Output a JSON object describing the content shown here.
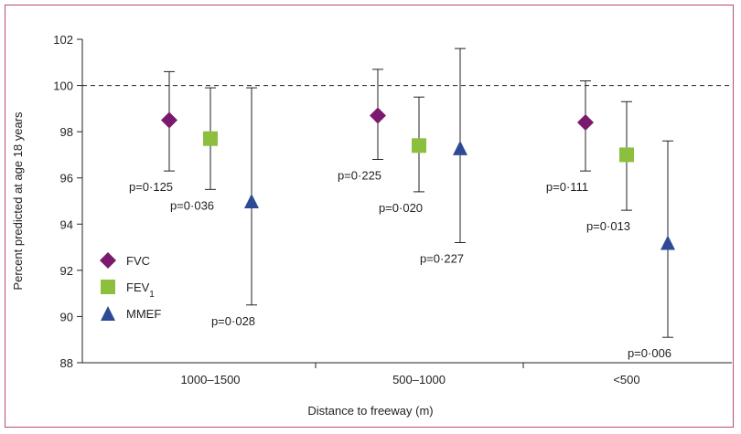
{
  "chart_data": {
    "type": "scatter",
    "ylabel": "Percent predicted at age 18 years",
    "xlabel": "Distance to freeway (m)",
    "categories": [
      "1000–1500",
      "500–1000",
      "<500"
    ],
    "ylim": [
      88,
      102
    ],
    "yticks": [
      "88",
      "90",
      "92",
      "94",
      "96",
      "98",
      "100",
      "102"
    ],
    "reference_line": 100,
    "legend_position": "left",
    "series": [
      {
        "name": "FVC",
        "sub": "",
        "color": "#7a1a6e",
        "marker": "diamond",
        "points": [
          {
            "value": 98.5,
            "low": 96.3,
            "high": 100.6,
            "p": "p=0·125"
          },
          {
            "value": 98.7,
            "low": 96.8,
            "high": 100.7,
            "p": "p=0·225"
          },
          {
            "value": 98.4,
            "low": 96.3,
            "high": 100.2,
            "p": "p=0·111"
          }
        ]
      },
      {
        "name": "FEV",
        "sub": "1",
        "color": "#8dbf3f",
        "marker": "square",
        "points": [
          {
            "value": 97.7,
            "low": 95.5,
            "high": 99.9,
            "p": "p=0·036"
          },
          {
            "value": 97.4,
            "low": 95.4,
            "high": 99.5,
            "p": "p=0·020"
          },
          {
            "value": 97.0,
            "low": 94.6,
            "high": 99.3,
            "p": "p=0·013"
          }
        ]
      },
      {
        "name": "MMEF",
        "sub": "",
        "color": "#2f4a95",
        "marker": "triangle",
        "points": [
          {
            "value": 95.0,
            "low": 90.5,
            "high": 99.9,
            "p": "p=0·028"
          },
          {
            "value": 97.3,
            "low": 93.2,
            "high": 101.6,
            "p": "p=0·227"
          },
          {
            "value": 93.2,
            "low": 89.1,
            "high": 97.6,
            "p": "p=0·006"
          }
        ]
      }
    ]
  }
}
